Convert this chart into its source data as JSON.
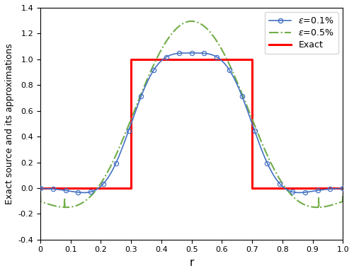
{
  "title": "",
  "xlabel": "r",
  "ylabel": "Exact source and its approximations",
  "xlim": [
    0,
    1
  ],
  "ylim": [
    -0.4,
    1.4
  ],
  "yticks": [
    -0.4,
    -0.2,
    0.0,
    0.2,
    0.4,
    0.6,
    0.8,
    1.0,
    1.2,
    1.4
  ],
  "xticks": [
    0,
    0.1,
    0.2,
    0.3,
    0.4,
    0.5,
    0.6,
    0.7,
    0.8,
    0.9,
    1.0
  ],
  "exact_x": [
    0,
    0.3,
    0.3,
    0.7,
    0.7,
    1.0
  ],
  "exact_y": [
    0,
    0,
    1,
    1,
    0,
    0
  ],
  "blue_color": "#4472C4",
  "green_color": "#70AD47",
  "red_color": "red",
  "n_markers": 25,
  "figsize": [
    5.0,
    3.86
  ],
  "dpi": 100,
  "blue_sigma": 0.09,
  "blue_scale": 1.0,
  "green_sigma": 0.155,
  "green_scale": 1.0
}
